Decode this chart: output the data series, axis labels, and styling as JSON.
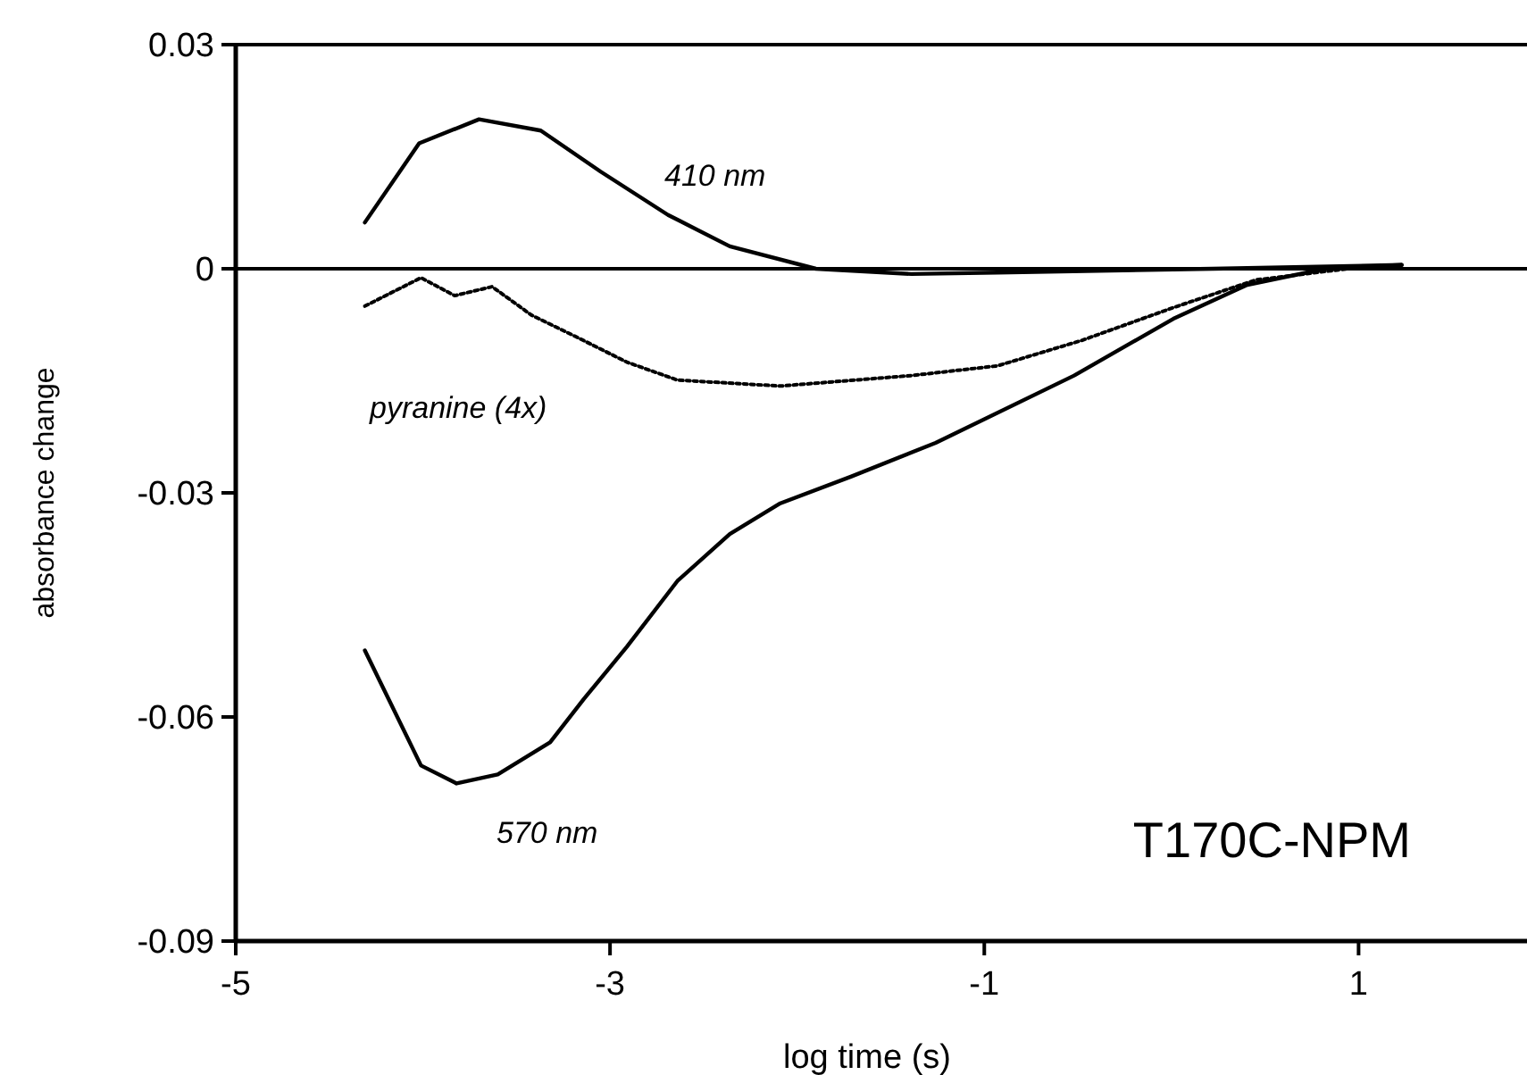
{
  "chart_data": {
    "type": "line",
    "xlabel": "log time (s)",
    "ylabel": "absorbance change",
    "xlim": [
      -5,
      1.9
    ],
    "xticks": [
      -5,
      -3,
      -1,
      1
    ],
    "ylim": [
      -0.09,
      0.03
    ],
    "yticks": [
      0.03,
      0,
      -0.03,
      -0.06,
      -0.09
    ],
    "grid": false,
    "ref_lines": [
      {
        "axis": "y",
        "value": 0
      }
    ],
    "annotations": [
      "T170C-NPM"
    ],
    "series": [
      {
        "name": "410 nm",
        "color": "#000000",
        "line_style": "solid",
        "x": [
          -4.31,
          -4.02,
          -3.7,
          -3.37,
          -3.05,
          -2.69,
          -2.36,
          -1.9,
          -1.39,
          -0.93,
          0.22,
          1.23
        ],
        "values": [
          0.0062,
          0.0168,
          0.02,
          0.0185,
          0.013,
          0.0072,
          0.003,
          0,
          -0.0007,
          -0.0005,
          0,
          0.0005
        ]
      },
      {
        "name": "pyranine (4x)",
        "color": "#000000",
        "line_style": "dotted",
        "x": [
          -4.31,
          -4.01,
          -3.83,
          -3.63,
          -3.42,
          -3.19,
          -2.91,
          -2.64,
          -2.09,
          -1.39,
          -0.93,
          -0.48,
          0.01,
          0.45,
          0.94,
          1.23
        ],
        "values": [
          -0.005,
          -0.0012,
          -0.0036,
          -0.0024,
          -0.0062,
          -0.009,
          -0.0125,
          -0.0149,
          -0.0157,
          -0.0143,
          -0.013,
          -0.0096,
          -0.0052,
          -0.0015,
          0,
          0.0005
        ]
      },
      {
        "name": "570 nm",
        "color": "#000000",
        "line_style": "solid",
        "x": [
          -4.31,
          -4.01,
          -3.82,
          -3.6,
          -3.32,
          -3.14,
          -2.91,
          -2.64,
          -2.36,
          -2.09,
          -1.71,
          -1.26,
          -0.52,
          0.01,
          0.4,
          0.82,
          1.23
        ],
        "values": [
          -0.0511,
          -0.0665,
          -0.0689,
          -0.0677,
          -0.0634,
          -0.0576,
          -0.0506,
          -0.0418,
          -0.0355,
          -0.0314,
          -0.0278,
          -0.0233,
          -0.0143,
          -0.0067,
          -0.0022,
          0,
          0.0005
        ]
      }
    ]
  }
}
